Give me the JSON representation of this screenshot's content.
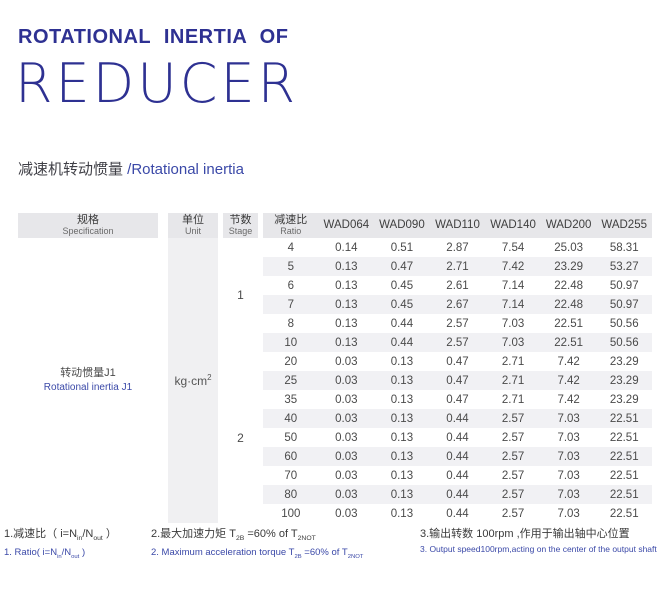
{
  "page": {
    "title_line1": "ROTATIONAL INERTIA OF",
    "title_line2": "REDUCER",
    "subtitle_zh": "减速机转动惯量 ",
    "subtitle_en": "/Rotational inertia"
  },
  "colors": {
    "title_navy": "#2e3192",
    "accent_blue": "#3b49a8",
    "table_header_bg": "#e7e7ea",
    "row_stripe_bg": "#f1f1f4",
    "unit_column_bg": "#f0f0f2"
  },
  "table": {
    "headers": {
      "spec_zh": "规格",
      "spec_en": "Specification",
      "unit_zh": "单位",
      "unit_en": "Unit",
      "stage_zh": "节数",
      "stage_en": "Stage",
      "ratio_zh": "减速比",
      "ratio_en": "Ratio"
    },
    "columns": [
      "WAD064",
      "WAD090",
      "WAD110",
      "WAD140",
      "WAD200",
      "WAD255"
    ],
    "spec_value_zh": "转动惯量J1",
    "spec_value_en": "Rotational inertia J1",
    "unit_value_parts": [
      "kg·cm",
      "2"
    ],
    "stages": [
      {
        "label": "1",
        "rows": 6
      },
      {
        "label": "2",
        "rows": 9
      }
    ],
    "rows": [
      {
        "ratio": "4",
        "values": [
          "0.14",
          "0.51",
          "2.87",
          "7.54",
          "25.03",
          "58.31"
        ]
      },
      {
        "ratio": "5",
        "values": [
          "0.13",
          "0.47",
          "2.71",
          "7.42",
          "23.29",
          "53.27"
        ]
      },
      {
        "ratio": "6",
        "values": [
          "0.13",
          "0.45",
          "2.61",
          "7.14",
          "22.48",
          "50.97"
        ]
      },
      {
        "ratio": "7",
        "values": [
          "0.13",
          "0.45",
          "2.67",
          "7.14",
          "22.48",
          "50.97"
        ]
      },
      {
        "ratio": "8",
        "values": [
          "0.13",
          "0.44",
          "2.57",
          "7.03",
          "22.51",
          "50.56"
        ]
      },
      {
        "ratio": "10",
        "values": [
          "0.13",
          "0.44",
          "2.57",
          "7.03",
          "22.51",
          "50.56"
        ]
      },
      {
        "ratio": "20",
        "values": [
          "0.03",
          "0.13",
          "0.47",
          "2.71",
          "7.42",
          "23.29"
        ]
      },
      {
        "ratio": "25",
        "values": [
          "0.03",
          "0.13",
          "0.47",
          "2.71",
          "7.42",
          "23.29"
        ]
      },
      {
        "ratio": "35",
        "values": [
          "0.03",
          "0.13",
          "0.47",
          "2.71",
          "7.42",
          "23.29"
        ]
      },
      {
        "ratio": "40",
        "values": [
          "0.03",
          "0.13",
          "0.44",
          "2.57",
          "7.03",
          "22.51"
        ]
      },
      {
        "ratio": "50",
        "values": [
          "0.03",
          "0.13",
          "0.44",
          "2.57",
          "7.03",
          "22.51"
        ]
      },
      {
        "ratio": "60",
        "values": [
          "0.03",
          "0.13",
          "0.44",
          "2.57",
          "7.03",
          "22.51"
        ]
      },
      {
        "ratio": "70",
        "values": [
          "0.03",
          "0.13",
          "0.44",
          "2.57",
          "7.03",
          "22.51"
        ]
      },
      {
        "ratio": "80",
        "values": [
          "0.03",
          "0.13",
          "0.44",
          "2.57",
          "7.03",
          "22.51"
        ]
      },
      {
        "ratio": "100",
        "values": [
          "0.03",
          "0.13",
          "0.44",
          "2.57",
          "7.03",
          "22.51"
        ]
      }
    ]
  },
  "notes": {
    "n1_zh": [
      "1.减速比（ i=N",
      "in",
      "/N",
      "out",
      " ）"
    ],
    "n1_en": [
      "1. Ratio( i=N",
      "in",
      "/N",
      "out",
      " )"
    ],
    "n2_zh": [
      "2.最大加速力矩 T",
      "2B",
      " =60% of T",
      "2NOT"
    ],
    "n2_en": [
      "2. Maximum acceleration torque T",
      "2B",
      " =60% of T",
      "2NOT"
    ],
    "n3_zh": "3.输出转数 100rpm ,作用于输出轴中心位置",
    "n3_en": "3. Output speed100rpm,acting on the center of the output shaft"
  }
}
